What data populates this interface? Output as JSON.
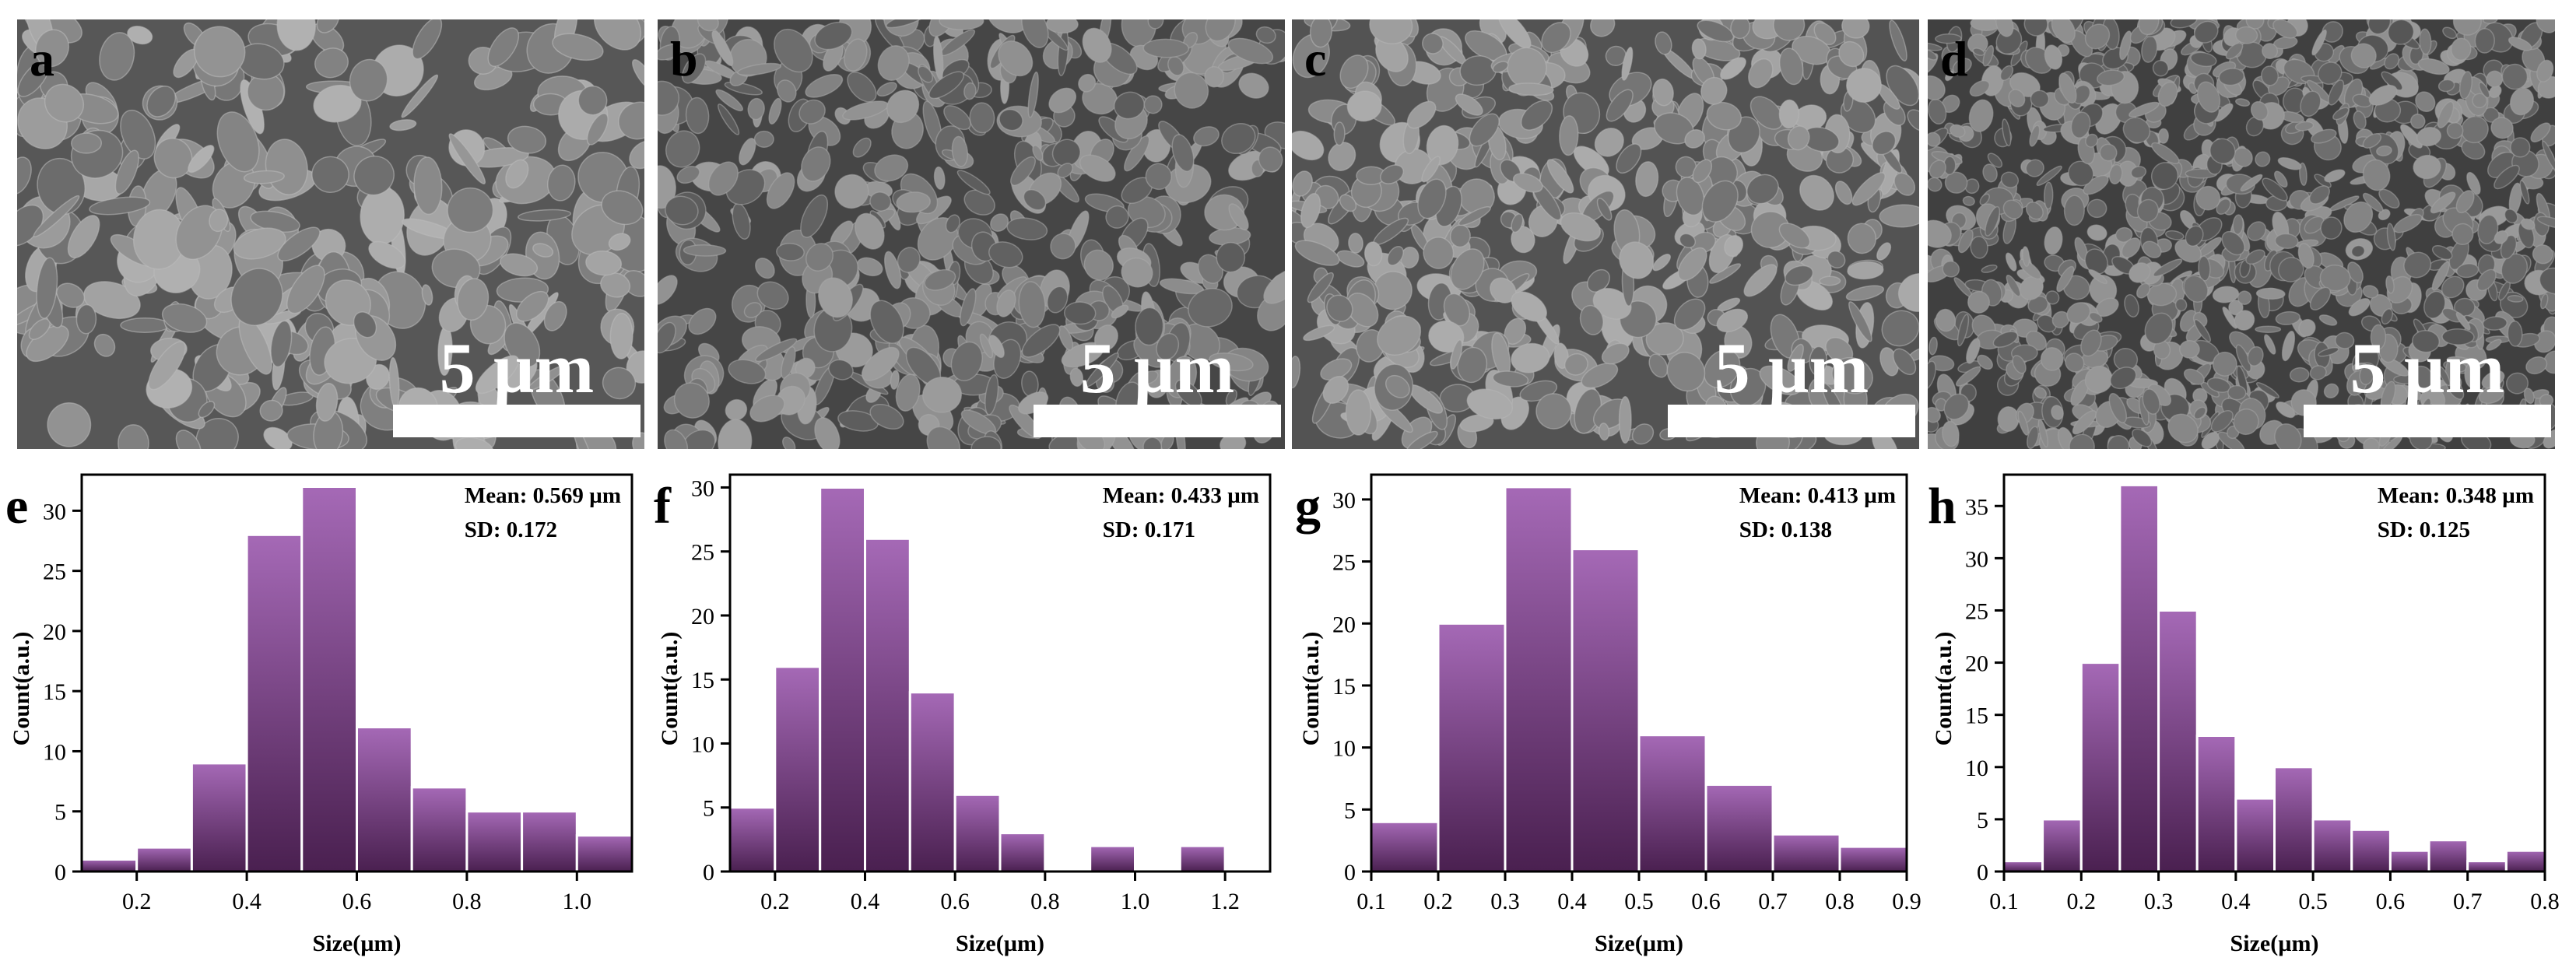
{
  "sem_panels": [
    {
      "label": "a",
      "scale_text": "5 µm",
      "texture": {
        "base": "#8e8e8e",
        "grain": "coarse",
        "seed": 11
      }
    },
    {
      "label": "b",
      "scale_text": "5 µm",
      "texture": {
        "base": "#7d7d7d",
        "grain": "medium",
        "seed": 23
      }
    },
    {
      "label": "c",
      "scale_text": "5 µm",
      "texture": {
        "base": "#8a8a8a",
        "grain": "medium",
        "seed": 37
      }
    },
    {
      "label": "d",
      "scale_text": "5 µm",
      "texture": {
        "base": "#777777",
        "grain": "fine",
        "seed": 51
      }
    }
  ],
  "colors": {
    "bar_top": "#a569b6",
    "bar_bottom": "#4a2050",
    "bar_edge": "#ffffff",
    "axis": "#000000",
    "scalebar": "#ffffff"
  },
  "chart_data": [
    {
      "type": "bar",
      "panel_label": "e",
      "xlabel": "Size(µm)",
      "ylabel": "Count(a.u.)",
      "annotation": [
        "Mean: 0.569 µm",
        "SD: 0.172"
      ],
      "xlim": [
        0.1,
        1.1
      ],
      "ylim": [
        0,
        33
      ],
      "xticks": [
        0.2,
        0.4,
        0.6,
        0.8,
        1.0
      ],
      "xtick_labels": [
        "0.2",
        "0.4",
        "0.6",
        "0.8",
        "1.0"
      ],
      "yticks": [
        0,
        5,
        10,
        15,
        20,
        25,
        30
      ],
      "bins": [
        [
          0.1,
          0.2
        ],
        [
          0.2,
          0.3
        ],
        [
          0.3,
          0.4
        ],
        [
          0.4,
          0.5
        ],
        [
          0.5,
          0.6
        ],
        [
          0.6,
          0.7
        ],
        [
          0.7,
          0.8
        ],
        [
          0.8,
          0.9
        ],
        [
          0.9,
          1.0
        ],
        [
          1.0,
          1.1
        ]
      ],
      "values": [
        1,
        2,
        9,
        28,
        32,
        12,
        7,
        5,
        5,
        3
      ]
    },
    {
      "type": "bar",
      "panel_label": "f",
      "xlabel": "Size(µm)",
      "ylabel": "Count(a.u.)",
      "annotation": [
        "Mean: 0.433 µm",
        "SD: 0.171"
      ],
      "xlim": [
        0.1,
        1.3
      ],
      "ylim": [
        0,
        31
      ],
      "xticks": [
        0.2,
        0.4,
        0.6,
        0.8,
        1.0,
        1.2
      ],
      "xtick_labels": [
        "0.2",
        "0.4",
        "0.6",
        "0.8",
        "1.0",
        "1.2"
      ],
      "yticks": [
        0,
        5,
        10,
        15,
        20,
        25,
        30
      ],
      "bins": [
        [
          0.1,
          0.2
        ],
        [
          0.2,
          0.3
        ],
        [
          0.3,
          0.4
        ],
        [
          0.4,
          0.5
        ],
        [
          0.5,
          0.6
        ],
        [
          0.6,
          0.7
        ],
        [
          0.7,
          0.8
        ],
        [
          0.8,
          0.9
        ],
        [
          0.9,
          1.0
        ],
        [
          1.0,
          1.1
        ],
        [
          1.1,
          1.2
        ]
      ],
      "values": [
        5,
        16,
        30,
        26,
        14,
        6,
        3,
        0,
        2,
        0,
        2
      ]
    },
    {
      "type": "bar",
      "panel_label": "g",
      "xlabel": "Size(µm)",
      "ylabel": "Count(a.u.)",
      "annotation": [
        "Mean: 0.413 µm",
        "SD: 0.138"
      ],
      "xlim": [
        0.1,
        0.9
      ],
      "ylim": [
        0,
        32
      ],
      "xticks": [
        0.1,
        0.2,
        0.3,
        0.4,
        0.5,
        0.6,
        0.7,
        0.8,
        0.9
      ],
      "xtick_labels": [
        "0.1",
        "0.2",
        "0.3",
        "0.4",
        "0.5",
        "0.6",
        "0.7",
        "0.8",
        "0.9"
      ],
      "yticks": [
        0,
        5,
        10,
        15,
        20,
        25,
        30
      ],
      "bins": [
        [
          0.1,
          0.2
        ],
        [
          0.2,
          0.3
        ],
        [
          0.3,
          0.4
        ],
        [
          0.4,
          0.5
        ],
        [
          0.5,
          0.6
        ],
        [
          0.6,
          0.7
        ],
        [
          0.7,
          0.8
        ],
        [
          0.8,
          0.9
        ]
      ],
      "values": [
        4,
        20,
        31,
        26,
        11,
        7,
        3,
        2
      ]
    },
    {
      "type": "bar",
      "panel_label": "h",
      "xlabel": "Size(µm)",
      "ylabel": "Count(a.u.)",
      "annotation": [
        "Mean: 0.348 µm",
        "SD: 0.125"
      ],
      "xlim": [
        0.1,
        0.8
      ],
      "ylim": [
        0,
        38
      ],
      "xticks": [
        0.1,
        0.2,
        0.3,
        0.4,
        0.5,
        0.6,
        0.7,
        0.8
      ],
      "xtick_labels": [
        "0.1",
        "0.2",
        "0.3",
        "0.4",
        "0.5",
        "0.6",
        "0.7",
        "0.8"
      ],
      "yticks": [
        0,
        5,
        10,
        15,
        20,
        25,
        30,
        35
      ],
      "bins": [
        [
          0.1,
          0.15
        ],
        [
          0.15,
          0.2
        ],
        [
          0.2,
          0.25
        ],
        [
          0.25,
          0.3
        ],
        [
          0.3,
          0.35
        ],
        [
          0.35,
          0.4
        ],
        [
          0.4,
          0.45
        ],
        [
          0.45,
          0.5
        ],
        [
          0.5,
          0.55
        ],
        [
          0.55,
          0.6
        ],
        [
          0.6,
          0.65
        ],
        [
          0.65,
          0.7
        ],
        [
          0.7,
          0.75
        ],
        [
          0.75,
          0.8
        ]
      ],
      "values": [
        1,
        5,
        20,
        37,
        25,
        13,
        7,
        10,
        5,
        4,
        2,
        3,
        1,
        2
      ]
    }
  ]
}
